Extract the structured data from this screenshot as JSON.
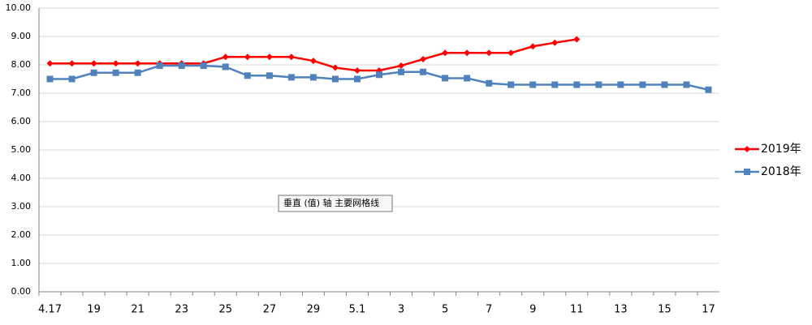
{
  "chart_data": {
    "type": "line",
    "categories": [
      "4.17",
      null,
      "19",
      null,
      "21",
      null,
      "23",
      null,
      "25",
      null,
      "27",
      null,
      "29",
      null,
      "5.1",
      null,
      "3",
      null,
      "5",
      null,
      "7",
      null,
      "9",
      null,
      "11",
      null,
      "13",
      null,
      "15",
      null,
      "17"
    ],
    "series": [
      {
        "name": "2019年",
        "color": "#ff0000",
        "marker": "diamond",
        "values": [
          8.05,
          8.05,
          8.05,
          8.05,
          8.05,
          8.05,
          8.05,
          8.05,
          8.28,
          8.28,
          8.28,
          8.28,
          8.14,
          7.9,
          7.8,
          7.8,
          7.97,
          8.2,
          8.42,
          8.42,
          8.42,
          8.42,
          8.65,
          8.78,
          8.9,
          null,
          null,
          null,
          null,
          null,
          null
        ]
      },
      {
        "name": "2018年",
        "color": "#4f81bd",
        "marker": "square",
        "values": [
          7.5,
          7.5,
          7.72,
          7.72,
          7.72,
          7.97,
          7.97,
          7.97,
          7.93,
          7.62,
          7.62,
          7.56,
          7.56,
          7.5,
          7.5,
          7.65,
          7.75,
          7.75,
          7.53,
          7.53,
          7.35,
          7.3,
          7.3,
          7.3,
          7.3,
          7.3,
          7.3,
          7.3,
          7.3,
          7.3,
          7.12
        ]
      }
    ],
    "ylim": [
      0,
      10
    ],
    "yticks": [
      {
        "value": 0,
        "label": "0.00"
      },
      {
        "value": 1,
        "label": "1.00"
      },
      {
        "value": 2,
        "label": "2.00"
      },
      {
        "value": 3,
        "label": "3.00"
      },
      {
        "value": 4,
        "label": "4.00"
      },
      {
        "value": 5,
        "label": "5.00"
      },
      {
        "value": 6,
        "label": "6.00"
      },
      {
        "value": 7,
        "label": "7.00"
      },
      {
        "value": 8,
        "label": "8.00"
      },
      {
        "value": 9,
        "label": "9.00"
      },
      {
        "value": 10,
        "label": "10.00"
      }
    ],
    "grid": true,
    "legend": "right",
    "annotation": "垂直 (值) 轴 主要网格线"
  }
}
